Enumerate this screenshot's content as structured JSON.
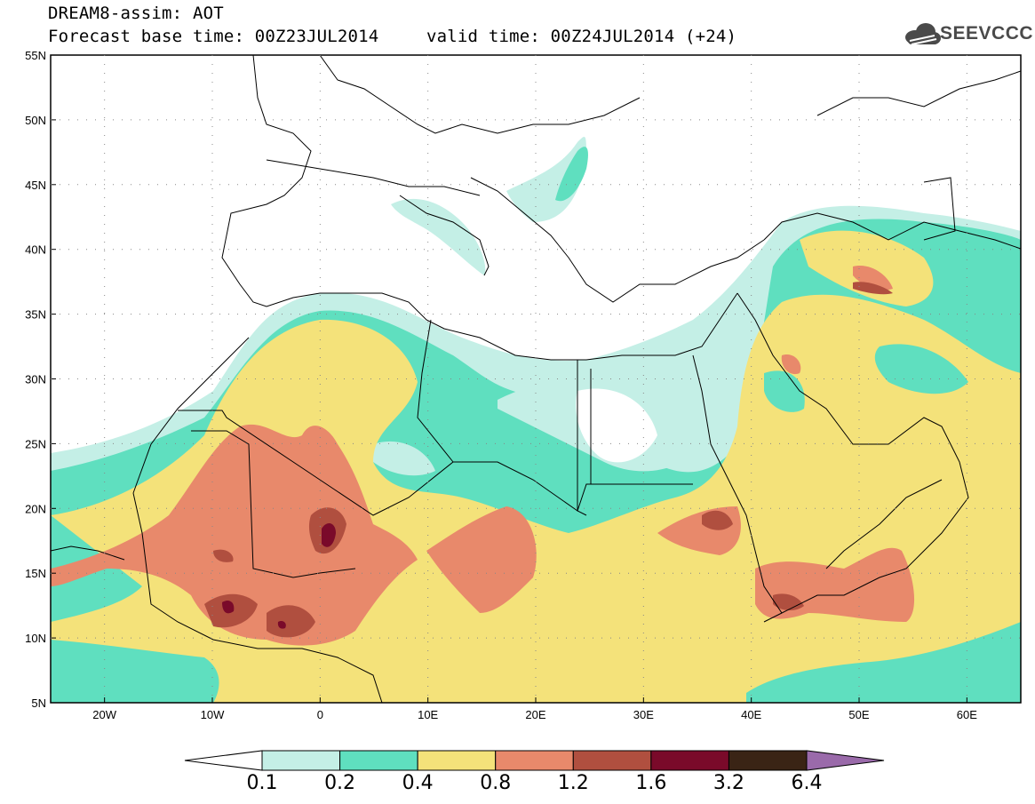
{
  "header": {
    "line1": "DREAM8-assim: AOT",
    "line2": "Forecast base time: 00Z23JUL2014",
    "line3": "valid time: 00Z24JUL2014 (+24)"
  },
  "logo": {
    "text": "SEEVCCC",
    "icon": "cloud-icon"
  },
  "map": {
    "lon_range": [
      -25,
      65
    ],
    "lat_range": [
      5,
      55
    ],
    "lat_ticks": [
      "55N",
      "50N",
      "45N",
      "40N",
      "35N",
      "30N",
      "25N",
      "20N",
      "15N",
      "10N",
      "5N"
    ],
    "lon_ticks": [
      "20W",
      "10W",
      "0",
      "10E",
      "20E",
      "30E",
      "40E",
      "50E",
      "60E"
    ],
    "variable": "Aerosol optical thickness (AOT)"
  },
  "colorbar": {
    "levels": [
      "0.1",
      "0.2",
      "0.4",
      "0.8",
      "1.2",
      "1.6",
      "3.2",
      "6.4"
    ],
    "colors": [
      "#ffffff",
      "#c4efe6",
      "#5fdfbf",
      "#f4e27a",
      "#e8896b",
      "#b04f3f",
      "#7a0a2a",
      "#3a2415",
      "#9a6aaa"
    ]
  }
}
